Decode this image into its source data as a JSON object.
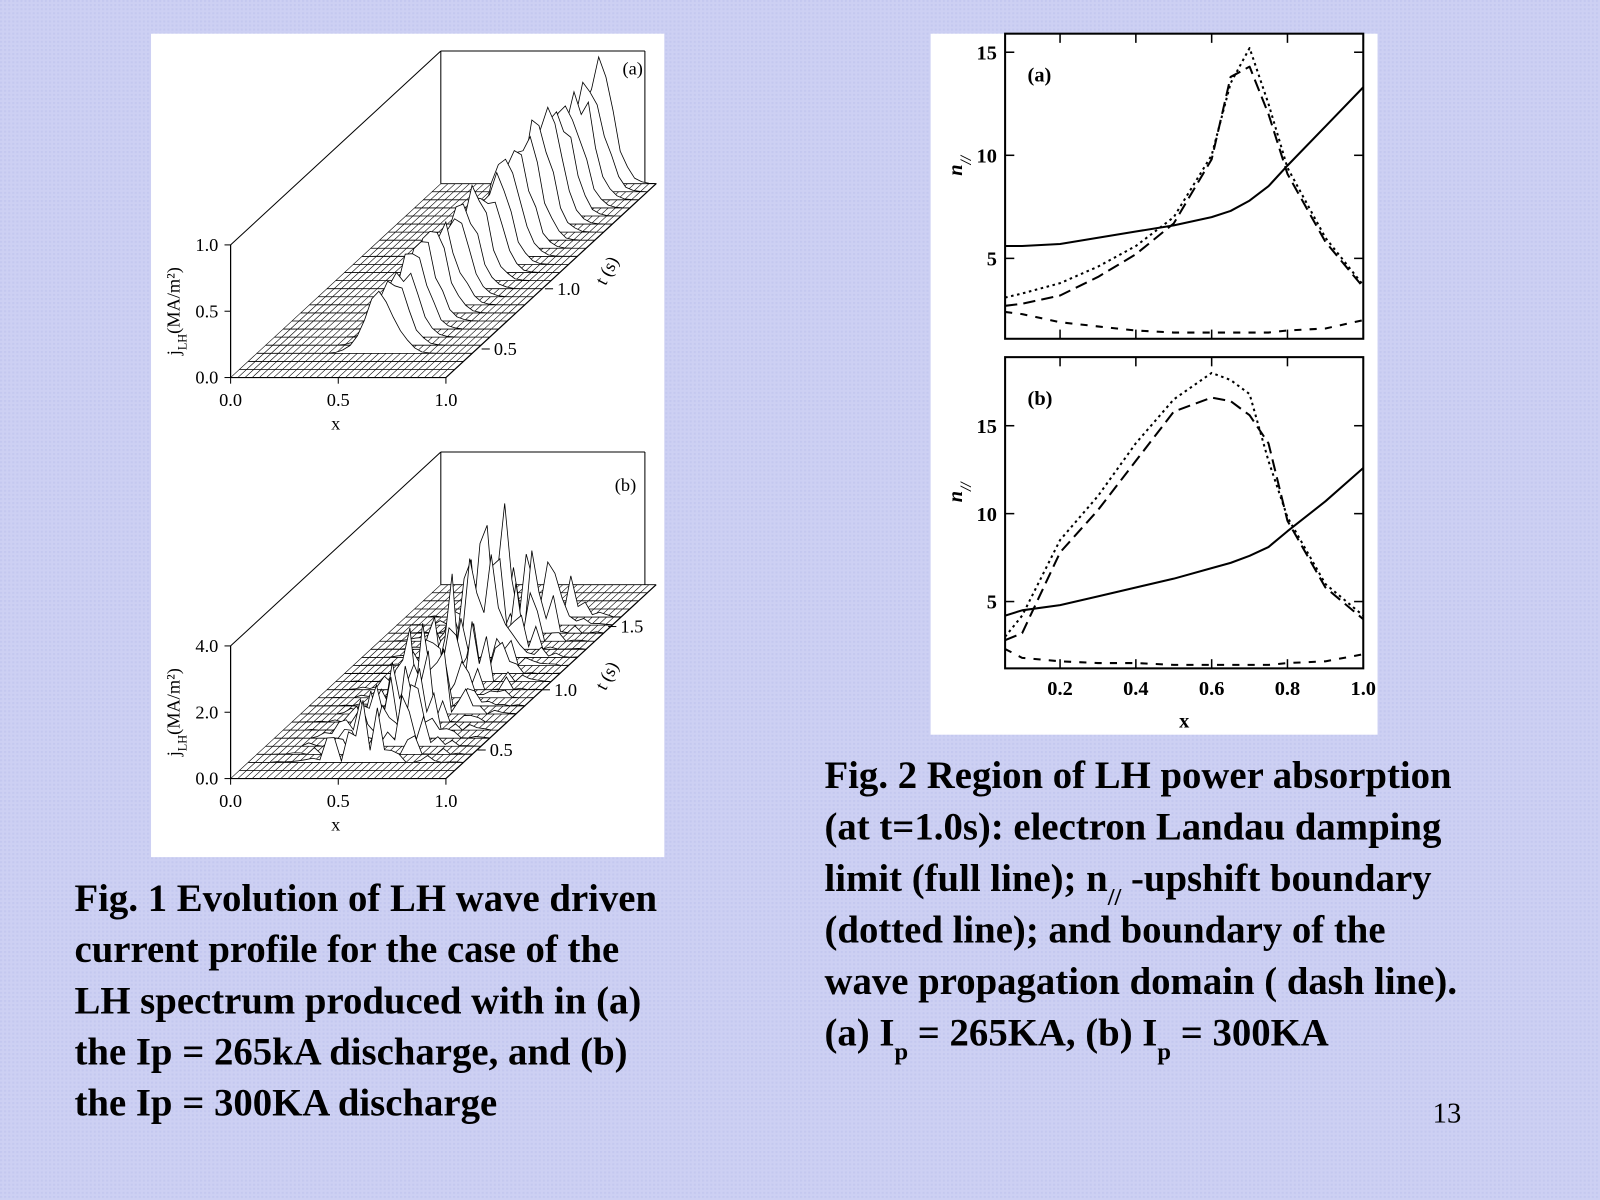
{
  "slide": {
    "page_number": "13"
  },
  "figure1": {
    "panels": [
      {
        "label": "(a)",
        "zticks": [
          "0.0",
          "0.5",
          "1.0"
        ],
        "zlabel": {
          "main": "j",
          "sub": "LH",
          "unit": "(MA/m²)"
        },
        "xticks": [
          "0.0",
          "0.5",
          "1.0"
        ],
        "xlabel": "x",
        "tticks": [
          "0.5",
          "1.0"
        ],
        "tlabel": "t (s)"
      },
      {
        "label": "(b)",
        "zticks": [
          "0.0",
          "2.0",
          "4.0"
        ],
        "zlabel": {
          "main": "j",
          "sub": "LH",
          "unit": "(MA/m²)"
        },
        "xticks": [
          "0.0",
          "0.5",
          "1.0"
        ],
        "xlabel": "x",
        "tticks": [
          "0.5",
          "1.0",
          "1.5"
        ],
        "tlabel": "t (s)"
      }
    ],
    "caption": [
      "Fig. 1 Evolution of LH wave driven",
      "current profile for the case of the",
      "LH spectrum produced with  in (a)",
      "the Ip = 265kA discharge, and (b)",
      "the Ip = 300KA discharge"
    ]
  },
  "figure2": {
    "caption": [
      [
        {
          "text": "Fig. 2 Region of LH power absorption"
        }
      ],
      [
        {
          "text": "(at t=1.0s): electron Landau damping"
        }
      ],
      [
        {
          "text": "limit (full line); n"
        },
        {
          "text": "//",
          "sub": true
        },
        {
          "text": " -upshift boundary"
        }
      ],
      [
        {
          "text": "(dotted line); and boundary of the"
        }
      ],
      [
        {
          "text": "wave propagation domain ( dash line)."
        }
      ],
      [
        {
          "text": "(a) I"
        },
        {
          "text": "p",
          "sub": true
        },
        {
          "text": " = 265KA, (b) I"
        },
        {
          "text": "p",
          "sub": true
        },
        {
          "text": " = 300KA"
        }
      ]
    ]
  },
  "chart_data": [
    {
      "type": "line",
      "panel_label": "(a)",
      "ylabel": "n",
      "ylabel_sub": "//",
      "x": [
        0.055,
        0.1,
        0.2,
        0.3,
        0.4,
        0.5,
        0.6,
        0.65,
        0.7,
        0.75,
        0.8,
        0.9,
        1.0
      ],
      "xlim": [
        0.055,
        1.0
      ],
      "ylim": [
        1.1,
        15.9
      ],
      "yticks": [
        5,
        10,
        15
      ],
      "series": [
        {
          "style": "solid",
          "color": "#000000",
          "values": [
            5.6,
            5.6,
            5.7,
            6.0,
            6.3,
            6.6,
            7.0,
            7.3,
            7.8,
            8.5,
            9.5,
            11.4,
            13.3
          ]
        },
        {
          "style": "dotted",
          "color": "#000000",
          "values": [
            3.1,
            3.3,
            3.8,
            4.6,
            5.6,
            7.0,
            10.0,
            13.5,
            15.2,
            12.5,
            9.4,
            6.0,
            3.7
          ]
        },
        {
          "style": "dashed",
          "color": "#000000",
          "values": [
            2.7,
            2.8,
            3.2,
            4.1,
            5.2,
            6.7,
            9.8,
            13.8,
            14.3,
            12.0,
            9.1,
            5.8,
            3.6
          ]
        },
        {
          "style": "short-dashed",
          "color": "#000000",
          "values": [
            2.4,
            2.3,
            1.9,
            1.7,
            1.5,
            1.4,
            1.4,
            1.4,
            1.4,
            1.4,
            1.5,
            1.6,
            2.0
          ]
        }
      ]
    },
    {
      "type": "line",
      "panel_label": "(b)",
      "ylabel": "n",
      "ylabel_sub": "//",
      "xlabel": "x",
      "x": [
        0.055,
        0.1,
        0.2,
        0.3,
        0.4,
        0.5,
        0.6,
        0.65,
        0.7,
        0.75,
        0.8,
        0.9,
        1.0
      ],
      "xlim": [
        0.055,
        1.0
      ],
      "ylim": [
        1.2,
        18.9
      ],
      "yticks": [
        5,
        10,
        15
      ],
      "xticks": [
        0.2,
        0.4,
        0.6,
        0.8,
        {
          "value": 1,
          "label": "1.0"
        }
      ],
      "series": [
        {
          "style": "solid",
          "color": "#000000",
          "values": [
            4.2,
            4.5,
            4.8,
            5.3,
            5.8,
            6.3,
            6.9,
            7.2,
            7.6,
            8.1,
            9.0,
            10.7,
            12.6
          ]
        },
        {
          "style": "dotted",
          "color": "#000000",
          "values": [
            3.0,
            4.2,
            8.5,
            11.0,
            14.0,
            16.5,
            18.0,
            17.6,
            16.8,
            13.0,
            9.8,
            6.0,
            4.2
          ]
        },
        {
          "style": "dashed",
          "color": "#000000",
          "values": [
            2.8,
            3.2,
            7.8,
            10.2,
            13.0,
            15.8,
            16.6,
            16.4,
            15.6,
            14.0,
            9.6,
            5.8,
            4.0
          ]
        },
        {
          "style": "short-dashed",
          "color": "#000000",
          "values": [
            2.3,
            1.8,
            1.6,
            1.5,
            1.5,
            1.4,
            1.4,
            1.4,
            1.4,
            1.4,
            1.5,
            1.6,
            2.0
          ]
        }
      ]
    }
  ]
}
